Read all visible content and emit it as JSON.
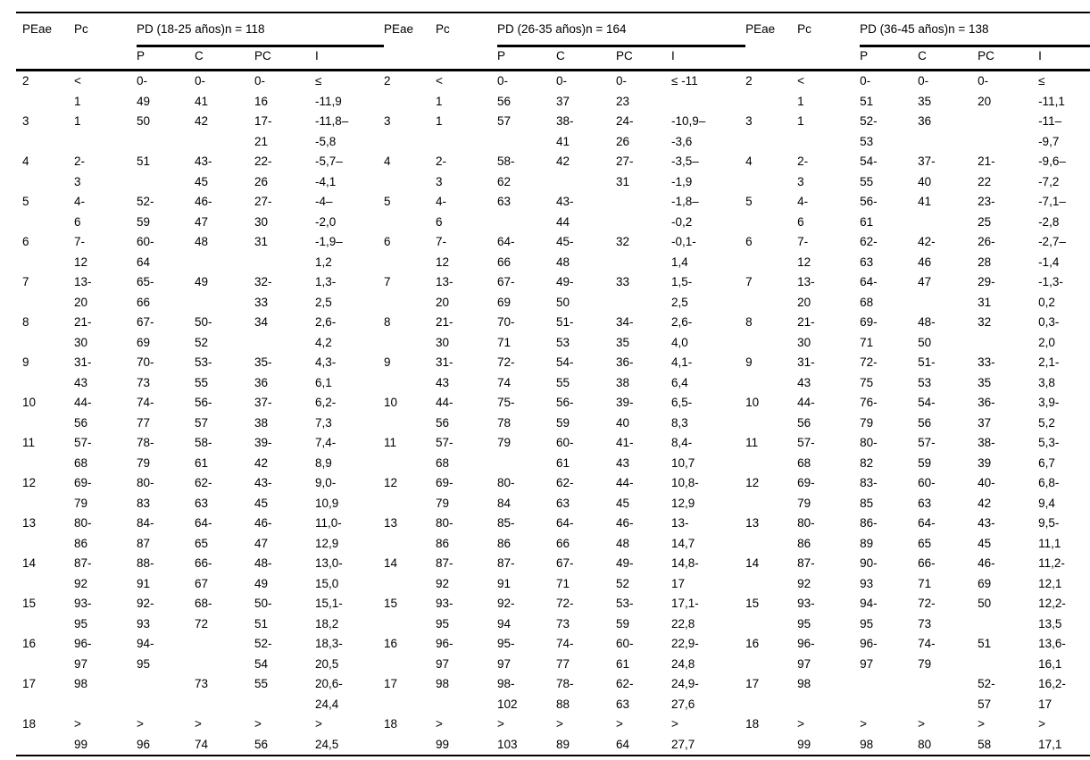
{
  "table": {
    "col_headers": {
      "peae": "PEae",
      "pc": "Pc",
      "p": "P",
      "c": "C",
      "pcc": "PC",
      "i": "I"
    },
    "groups": [
      {
        "title": "PD (18-25 años)n = 118"
      },
      {
        "title": "PD (26-35 años)n = 164"
      },
      {
        "title": "PD (36-45 años)n = 138"
      }
    ],
    "rows": [
      {
        "peae": "2",
        "pc": "<\n1",
        "g1": {
          "p": "0-\n49",
          "c": "0-\n41",
          "pc": "0-\n16",
          "i": "≤\n-11,9"
        },
        "g2": {
          "p": "0-\n56",
          "c": "0-\n37",
          "pc": "0-\n23",
          "i": "≤ -11"
        },
        "g3": {
          "p": "0-\n51",
          "c": "0-\n35",
          "pc": "0-\n20",
          "i": "≤\n-11,1"
        }
      },
      {
        "peae": "3",
        "pc": "1",
        "g1": {
          "p": "50",
          "c": "42",
          "pc": "17-\n21",
          "i": "-11,8–\n-5,8"
        },
        "g2": {
          "p": "57",
          "c": "38-\n41",
          "pc": "24-\n26",
          "i": "-10,9–\n-3,6"
        },
        "g3": {
          "p": "52-\n53",
          "c": "36",
          "pc": "",
          "i": "-11–\n-9,7"
        }
      },
      {
        "peae": "4",
        "pc": "2-\n3",
        "g1": {
          "p": "51",
          "c": "43-\n45",
          "pc": "22-\n26",
          "i": "-5,7–\n-4,1"
        },
        "g2": {
          "p": "58-\n62",
          "c": "42",
          "pc": "27-\n31",
          "i": "-3,5–\n-1,9"
        },
        "g3": {
          "p": "54-\n55",
          "c": "37-\n40",
          "pc": "21-\n22",
          "i": "-9,6–\n-7,2"
        }
      },
      {
        "peae": "5",
        "pc": "4-\n6",
        "g1": {
          "p": "52-\n59",
          "c": "46-\n47",
          "pc": "27-\n30",
          "i": "-4–\n-2,0"
        },
        "g2": {
          "p": "63",
          "c": "43-\n44",
          "pc": "",
          "i": "-1,8–\n-0,2"
        },
        "g3": {
          "p": "56-\n61",
          "c": "41",
          "pc": "23-\n25",
          "i": "-7,1–\n-2,8"
        }
      },
      {
        "peae": "6",
        "pc": "7-\n12",
        "g1": {
          "p": "60-\n64",
          "c": "48",
          "pc": "31",
          "i": "-1,9–\n1,2"
        },
        "g2": {
          "p": "64-\n66",
          "c": "45-\n48",
          "pc": "32",
          "i": "-0,1-\n1,4"
        },
        "g3": {
          "p": "62-\n63",
          "c": "42-\n46",
          "pc": "26-\n28",
          "i": "-2,7–\n-1,4"
        }
      },
      {
        "peae": "7",
        "pc": "13-\n20",
        "g1": {
          "p": "65-\n66",
          "c": "49",
          "pc": "32-\n33",
          "i": "1,3-\n2,5"
        },
        "g2": {
          "p": "67-\n69",
          "c": "49-\n50",
          "pc": "33",
          "i": "1,5-\n2,5"
        },
        "g3": {
          "p": "64-\n68",
          "c": "47",
          "pc": "29-\n31",
          "i": "-1,3-\n0,2"
        }
      },
      {
        "peae": "8",
        "pc": "21-\n30",
        "g1": {
          "p": "67-\n69",
          "c": "50-\n52",
          "pc": "34",
          "i": "2,6-\n4,2"
        },
        "g2": {
          "p": "70-\n71",
          "c": "51-\n53",
          "pc": "34-\n35",
          "i": "2,6-\n4,0"
        },
        "g3": {
          "p": "69-\n71",
          "c": "48-\n50",
          "pc": "32",
          "i": "0,3-\n2,0"
        }
      },
      {
        "peae": "9",
        "pc": "31-\n43",
        "g1": {
          "p": "70-\n73",
          "c": "53-\n55",
          "pc": "35-\n36",
          "i": "4,3-\n6,1"
        },
        "g2": {
          "p": "72-\n74",
          "c": "54-\n55",
          "pc": "36-\n38",
          "i": "4,1-\n6,4"
        },
        "g3": {
          "p": "72-\n75",
          "c": "51-\n53",
          "pc": "33-\n35",
          "i": "2,1-\n3,8"
        }
      },
      {
        "peae": "10",
        "pc": "44-\n56",
        "g1": {
          "p": "74-\n77",
          "c": "56-\n57",
          "pc": "37-\n38",
          "i": "6,2-\n7,3"
        },
        "g2": {
          "p": "75-\n78",
          "c": "56-\n59",
          "pc": "39-\n40",
          "i": "6,5-\n8,3"
        },
        "g3": {
          "p": "76-\n79",
          "c": "54-\n56",
          "pc": "36-\n37",
          "i": "3,9-\n5,2"
        }
      },
      {
        "peae": "11",
        "pc": "57-\n68",
        "g1": {
          "p": "78-\n79",
          "c": "58-\n61",
          "pc": "39-\n42",
          "i": "7,4-\n8,9"
        },
        "g2": {
          "p": "79",
          "c": "60-\n61",
          "pc": "41-\n43",
          "i": "8,4-\n10,7"
        },
        "g3": {
          "p": "80-\n82",
          "c": "57-\n59",
          "pc": "38-\n39",
          "i": "5,3-\n6,7"
        }
      },
      {
        "peae": "12",
        "pc": "69-\n79",
        "g1": {
          "p": "80-\n83",
          "c": "62-\n63",
          "pc": "43-\n45",
          "i": "9,0-\n10,9"
        },
        "g2": {
          "p": "80-\n84",
          "c": "62-\n63",
          "pc": "44-\n45",
          "i": "10,8-\n12,9"
        },
        "g3": {
          "p": "83-\n85",
          "c": "60-\n63",
          "pc": "40-\n42",
          "i": "6,8-\n9,4"
        }
      },
      {
        "peae": "13",
        "pc": "80-\n86",
        "g1": {
          "p": "84-\n87",
          "c": "64-\n65",
          "pc": "46-\n47",
          "i": "11,0-\n12,9"
        },
        "g2": {
          "p": "85-\n86",
          "c": "64-\n66",
          "pc": "46-\n48",
          "i": "13-\n14,7"
        },
        "g3": {
          "p": "86-\n89",
          "c": "64-\n65",
          "pc": "43-\n45",
          "i": "9,5-\n11,1"
        }
      },
      {
        "peae": "14",
        "pc": "87-\n92",
        "g1": {
          "p": "88-\n91",
          "c": "66-\n67",
          "pc": "48-\n49",
          "i": "13,0-\n15,0"
        },
        "g2": {
          "p": "87-\n91",
          "c": "67-\n71",
          "pc": "49-\n52",
          "i": "14,8-\n17"
        },
        "g3": {
          "p": "90-\n93",
          "c": "66-\n71",
          "pc": "46-\n69",
          "i": "11,2-\n12,1"
        }
      },
      {
        "peae": "15",
        "pc": "93-\n95",
        "g1": {
          "p": "92-\n93",
          "c": "68-\n72",
          "pc": "50-\n51",
          "i": "15,1-\n18,2"
        },
        "g2": {
          "p": "92-\n94",
          "c": "72-\n73",
          "pc": "53-\n59",
          "i": "17,1-\n22,8"
        },
        "g3": {
          "p": "94-\n95",
          "c": "72-\n73",
          "pc": "50",
          "i": "12,2-\n13,5"
        }
      },
      {
        "peae": "16",
        "pc": "96-\n97",
        "g1": {
          "p": "94-\n95",
          "c": "",
          "pc": "52-\n54",
          "i": "18,3-\n20,5"
        },
        "g2": {
          "p": "95-\n97",
          "c": "74-\n77",
          "pc": "60-\n61",
          "i": "22,9-\n24,8"
        },
        "g3": {
          "p": "96-\n97",
          "c": "74-\n79",
          "pc": "51",
          "i": "13,6-\n16,1"
        }
      },
      {
        "peae": "17",
        "pc": "98",
        "g1": {
          "p": "",
          "c": "73",
          "pc": "55",
          "i": "20,6-\n24,4"
        },
        "g2": {
          "p": "98-\n102",
          "c": "78-\n88",
          "pc": "62-\n63",
          "i": "24,9-\n27,6"
        },
        "g3": {
          "p": "",
          "c": "",
          "pc": "52-\n57",
          "i": "16,2-\n17"
        }
      },
      {
        "peae": "18",
        "pc": ">\n99",
        "g1": {
          "p": ">\n96",
          "c": ">\n74",
          "pc": ">\n56",
          "i": ">\n24,5"
        },
        "g2": {
          "p": ">\n103",
          "c": ">\n89",
          "pc": ">\n64",
          "i": ">\n27,7"
        },
        "g3": {
          "p": ">\n98",
          "c": ">\n80",
          "pc": ">\n58",
          "i": ">\n17,1"
        }
      }
    ]
  }
}
